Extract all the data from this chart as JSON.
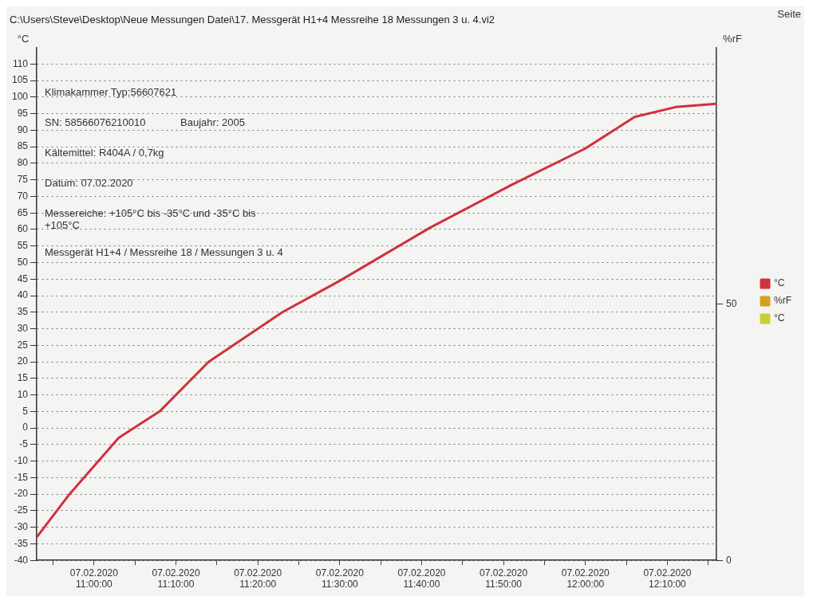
{
  "chart_data": {
    "type": "line",
    "title": "C:\\Users\\Steve\\Desktop\\Neue Messungen Datei\\17. Messgerät H1+4 Messreihe 18 Messungen 3 u. 4.vi2",
    "ylabel": "°C",
    "y2label": "%rF",
    "annotations": [
      "Seite",
      "Klimakammer Typ:56607621",
      "SN: 58566076210010",
      "Baujahr: 2005",
      "Kältemittel: R404A / 0,7kg",
      "Datum: 07.02.2020",
      "Messereiche: +105°C bis -35°C und -35°C bis +105°C",
      "Messgerät H1+4 / Messreihe 18 / Messungen 3 u. 4"
    ],
    "xlim": [
      "2020-02-07T10:53",
      "2020-02-07T12:16"
    ],
    "xticks": [
      {
        "value": "2020-02-07T10:55",
        "label": null
      },
      {
        "value": "2020-02-07T11:00",
        "label": "07.02.2020 11:00:00"
      },
      {
        "value": "2020-02-07T11:05",
        "label": null
      },
      {
        "value": "2020-02-07T11:10",
        "label": "07.02.2020 11:10:00"
      },
      {
        "value": "2020-02-07T11:15",
        "label": null
      },
      {
        "value": "2020-02-07T11:20",
        "label": "07.02.2020 11:20:00"
      },
      {
        "value": "2020-02-07T11:25",
        "label": null
      },
      {
        "value": "2020-02-07T11:30",
        "label": "07.02.2020 11:30:00"
      },
      {
        "value": "2020-02-07T11:35",
        "label": null
      },
      {
        "value": "2020-02-07T11:40",
        "label": "07.02.2020 11:40:00"
      },
      {
        "value": "2020-02-07T11:45",
        "label": null
      },
      {
        "value": "2020-02-07T11:50",
        "label": "07.02.2020 11:50:00"
      },
      {
        "value": "2020-02-07T11:55",
        "label": null
      },
      {
        "value": "2020-02-07T12:00",
        "label": "07.02.2020 12:00:00"
      },
      {
        "value": "2020-02-07T12:05",
        "label": null
      },
      {
        "value": "2020-02-07T12:10",
        "label": "07.02.2020 12:10:00"
      },
      {
        "value": "2020-02-07T12:15",
        "label": null
      }
    ],
    "ylim": [
      -40,
      115
    ],
    "yticks": [
      -40,
      -35,
      -30,
      -25,
      -20,
      -15,
      -10,
      -5,
      0,
      5,
      10,
      15,
      20,
      25,
      30,
      35,
      40,
      45,
      50,
      55,
      60,
      65,
      70,
      75,
      80,
      85,
      90,
      95,
      100,
      105,
      110
    ],
    "y2lim": [
      0,
      100
    ],
    "y2ticks": [
      0,
      50
    ],
    "grid": "y",
    "legend": "right",
    "marker": "none",
    "line_style": "solid",
    "series": [
      {
        "name": "°C",
        "color": "#d03040",
        "x": [
          "2020-02-07T10:53",
          "2020-02-07T10:57",
          "2020-02-07T11:03",
          "2020-02-07T11:08",
          "2020-02-07T11:14",
          "2020-02-07T11:23",
          "2020-02-07T11:30",
          "2020-02-07T11:41",
          "2020-02-07T11:51",
          "2020-02-07T12:00",
          "2020-02-07T12:06",
          "2020-02-07T12:11",
          "2020-02-07T12:16"
        ],
        "values": [
          -33,
          -20,
          -3,
          5,
          20,
          35,
          44.5,
          60.5,
          73.5,
          84.5,
          94,
          97,
          98
        ]
      },
      {
        "name": "%rF",
        "color": "#d8a020"
      },
      {
        "name": "°C",
        "color": "#c8d030"
      }
    ]
  }
}
